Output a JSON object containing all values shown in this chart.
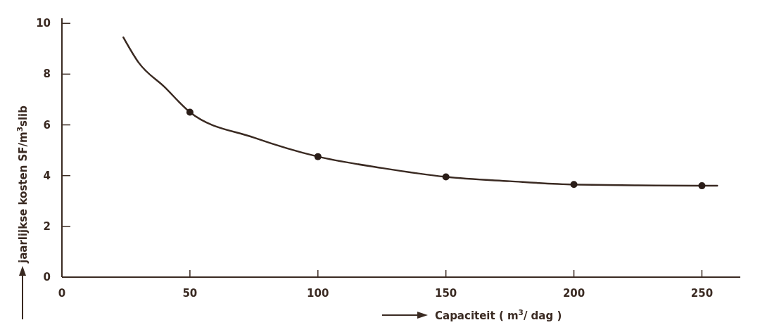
{
  "chart_data": {
    "type": "line",
    "xlabel": "Capaciteit ( m$^{3}$/ dag )",
    "ylabel": "jaarlijkse kosten SF/m$^{3}$slib",
    "xlim": [
      0,
      265
    ],
    "ylim": [
      0,
      10.2
    ],
    "xticks": [
      0,
      50,
      100,
      150,
      200,
      250
    ],
    "yticks": [
      0,
      2,
      4,
      6,
      8,
      10
    ],
    "grid": false,
    "series": [
      {
        "color": "#3a2a22",
        "marker": "none",
        "x": [
          24,
          30,
          40,
          50,
          75,
          100,
          125,
          150,
          175,
          200,
          225,
          250,
          256
        ],
        "values": [
          9.45,
          8.45,
          7.5,
          6.5,
          5.5,
          4.75,
          4.3,
          3.95,
          3.78,
          3.65,
          3.62,
          3.6,
          3.6
        ]
      },
      {
        "type": "scatter",
        "color": "#2a1d18",
        "marker": "circle",
        "x": [
          50,
          100,
          150,
          200,
          250
        ],
        "values": [
          6.5,
          4.75,
          3.95,
          3.65,
          3.6
        ]
      }
    ]
  }
}
